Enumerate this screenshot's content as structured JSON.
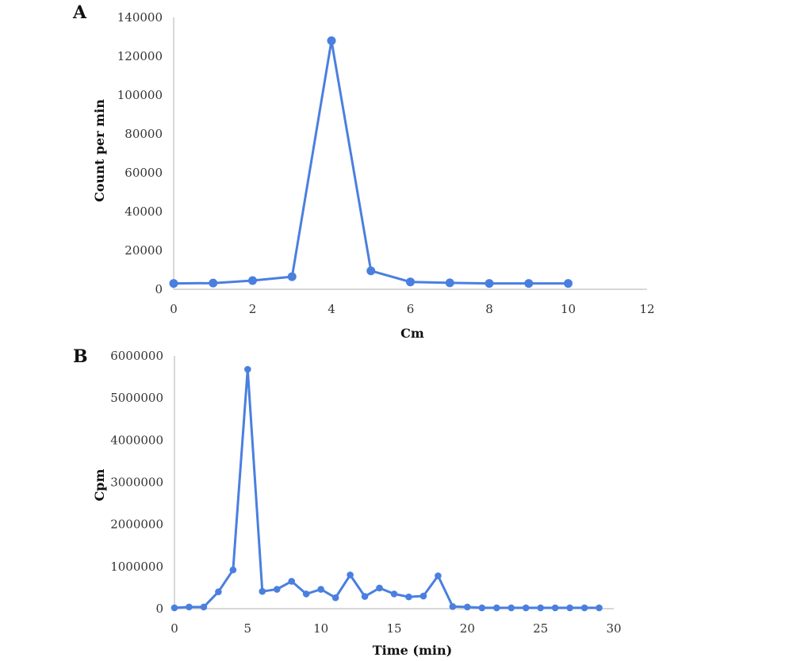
{
  "chart_data": [
    {
      "type": "line",
      "panel_label": "A",
      "xlabel": "Cm",
      "ylabel": "Count per min",
      "xlim": [
        0,
        12
      ],
      "ylim": [
        0,
        140000
      ],
      "x_ticks": [
        0,
        2,
        4,
        6,
        8,
        10,
        12
      ],
      "y_ticks": [
        0,
        20000,
        40000,
        60000,
        80000,
        100000,
        120000,
        140000
      ],
      "grid": false,
      "color": "#4a7fe0",
      "series": [
        {
          "x": [
            0,
            1,
            2,
            3,
            4,
            5,
            6,
            7,
            8,
            9,
            10
          ],
          "values": [
            3000,
            3200,
            4500,
            6500,
            128000,
            9500,
            3800,
            3300,
            3000,
            3000,
            3000
          ]
        }
      ]
    },
    {
      "type": "line",
      "panel_label": "B",
      "xlabel": "Time (min)",
      "ylabel": "Cpm",
      "xlim": [
        0,
        30
      ],
      "ylim": [
        0,
        6000000
      ],
      "x_ticks": [
        0,
        5,
        10,
        15,
        20,
        25,
        30
      ],
      "y_ticks": [
        0,
        1000000,
        2000000,
        3000000,
        4000000,
        5000000,
        6000000
      ],
      "grid": false,
      "color": "#4a7fe0",
      "series": [
        {
          "x": [
            0,
            1,
            2,
            3,
            4,
            5,
            6,
            7,
            8,
            9,
            10,
            11,
            12,
            13,
            14,
            15,
            16,
            17,
            18,
            19,
            20,
            21,
            22,
            23,
            24,
            25,
            26,
            27,
            28,
            29
          ],
          "values": [
            20000,
            40000,
            40000,
            400000,
            920000,
            5680000,
            410000,
            460000,
            650000,
            350000,
            460000,
            260000,
            800000,
            290000,
            490000,
            350000,
            280000,
            300000,
            780000,
            50000,
            40000,
            20000,
            20000,
            20000,
            20000,
            20000,
            20000,
            20000,
            20000,
            20000
          ]
        }
      ]
    }
  ]
}
